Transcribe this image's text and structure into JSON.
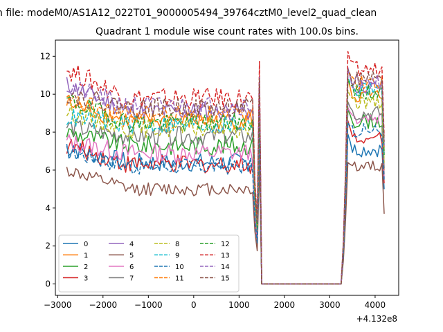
{
  "chart_data": {
    "type": "line",
    "suptitle": "n file: modeM0/AS1A12_022T01_9000005494_39764cztM0_level2_quad_clean",
    "title": "Quadrant 1 module wise count rates with 100.0s bins.",
    "xlabel": "",
    "ylabel": "",
    "x_offset_label": "+4.132e8",
    "xlim": [
      -3050,
      4520
    ],
    "ylim": [
      -0.6,
      12.85
    ],
    "xticks": [
      -3000,
      -2000,
      -1000,
      0,
      1000,
      2000,
      3000,
      4000
    ],
    "xtick_labels": [
      "−3000",
      "−2000",
      "−1000",
      "0",
      "1000",
      "2000",
      "3000",
      "4000"
    ],
    "yticks": [
      0,
      2,
      4,
      6,
      8,
      10,
      12
    ],
    "ytick_labels": [
      "0",
      "2",
      "4",
      "6",
      "8",
      "10",
      "12"
    ],
    "grid": false,
    "legend_position": "lower-left",
    "legend_columns": 4,
    "segments": {
      "seg1_x": [
        -2800,
        1300
      ],
      "drop_x": [
        1350,
        1400,
        1450,
        1500
      ],
      "zero_x": [
        1500,
        3250
      ],
      "rise_x": [
        3300,
        3350,
        3400,
        3450
      ],
      "seg2_x": [
        3450,
        4150
      ],
      "end_x": 4200,
      "step": 50
    },
    "series": [
      {
        "name": "0",
        "color": "#1f77b4",
        "dash": "solid",
        "base1": 6.4,
        "start": 7.2,
        "amp": 0.5,
        "level2": 7.1,
        "peak": 7.9,
        "end": 5.0
      },
      {
        "name": "1",
        "color": "#ff7f0e",
        "dash": "solid",
        "base1": 8.6,
        "start": 9.5,
        "amp": 0.5,
        "level2": 9.9,
        "peak": 10.8,
        "end": 6.0
      },
      {
        "name": "2",
        "color": "#2ca02c",
        "dash": "solid",
        "base1": 7.3,
        "start": 8.0,
        "amp": 0.5,
        "level2": 8.6,
        "peak": 9.2,
        "end": 5.8
      },
      {
        "name": "3",
        "color": "#d62728",
        "dash": "solid",
        "base1": 6.3,
        "start": 7.3,
        "amp": 0.5,
        "level2": 7.8,
        "peak": 8.6,
        "end": 5.3
      },
      {
        "name": "4",
        "color": "#9467bd",
        "dash": "solid",
        "base1": 9.1,
        "start": 10.5,
        "amp": 0.5,
        "level2": 10.4,
        "peak": 11.4,
        "end": 7.2
      },
      {
        "name": "5",
        "color": "#8c564b",
        "dash": "solid",
        "base1": 5.0,
        "start": 6.0,
        "amp": 0.35,
        "level2": 6.2,
        "peak": 6.4,
        "end": 3.7
      },
      {
        "name": "6",
        "color": "#e377c2",
        "dash": "solid",
        "base1": 6.9,
        "start": 7.5,
        "amp": 0.5,
        "level2": 8.8,
        "peak": 9.3,
        "end": 5.6
      },
      {
        "name": "7",
        "color": "#7f7f7f",
        "dash": "solid",
        "base1": 7.8,
        "start": 8.3,
        "amp": 0.5,
        "level2": 9.0,
        "peak": 9.6,
        "end": 6.1
      },
      {
        "name": "8",
        "color": "#bcbd22",
        "dash": "dashed",
        "base1": 8.2,
        "start": 9.1,
        "amp": 0.5,
        "level2": 9.6,
        "peak": 10.2,
        "end": 6.4
      },
      {
        "name": "9",
        "color": "#17becf",
        "dash": "dashed",
        "base1": 8.4,
        "start": 8.8,
        "amp": 0.5,
        "level2": 10.3,
        "peak": 10.9,
        "end": 6.9
      },
      {
        "name": "10",
        "color": "#1f77b4",
        "dash": "dashed",
        "base1": 6.2,
        "start": 7.0,
        "amp": 0.45,
        "level2": 8.1,
        "peak": 8.5,
        "end": 5.5
      },
      {
        "name": "11",
        "color": "#ff7f0e",
        "dash": "dashed",
        "base1": 8.9,
        "start": 9.6,
        "amp": 0.5,
        "level2": 10.6,
        "peak": 11.3,
        "end": 7.0
      },
      {
        "name": "12",
        "color": "#2ca02c",
        "dash": "dashed",
        "base1": 8.5,
        "start": 9.7,
        "amp": 0.5,
        "level2": 10.1,
        "peak": 10.8,
        "end": 6.8
      },
      {
        "name": "13",
        "color": "#d62728",
        "dash": "dashed",
        "base1": 9.8,
        "start": 11.3,
        "amp": 0.55,
        "level2": 11.3,
        "peak": 12.25,
        "end": 7.8
      },
      {
        "name": "14",
        "color": "#9467bd",
        "dash": "dashed",
        "base1": 9.4,
        "start": 10.4,
        "amp": 0.5,
        "level2": 10.7,
        "peak": 11.2,
        "end": 7.3
      },
      {
        "name": "15",
        "color": "#8c564b",
        "dash": "dashed",
        "base1": 9.3,
        "start": 10.0,
        "amp": 0.5,
        "level2": 10.8,
        "peak": 11.3,
        "end": 7.5
      }
    ]
  }
}
